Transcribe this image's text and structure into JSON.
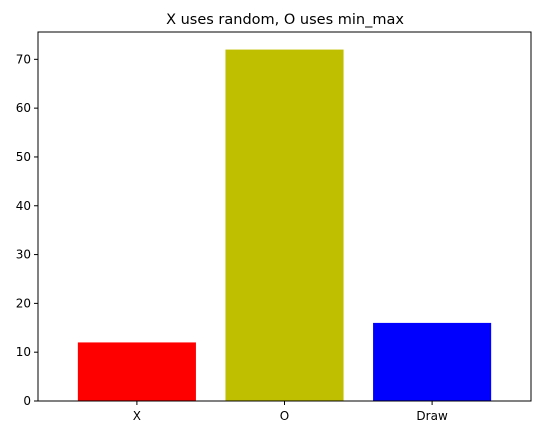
{
  "chart_data": {
    "type": "bar",
    "title": "X uses random, O uses min_max",
    "xlabel": "",
    "ylabel": "",
    "categories": [
      "X",
      "O",
      "Draw"
    ],
    "values": [
      12,
      72,
      16
    ],
    "colors": [
      "#ff0000",
      "#bfbf00",
      "#0000ff"
    ],
    "ylim": [
      0,
      75.6
    ],
    "yticks": [
      0,
      10,
      20,
      30,
      40,
      50,
      60,
      70
    ],
    "grid": false,
    "legend": "none"
  }
}
